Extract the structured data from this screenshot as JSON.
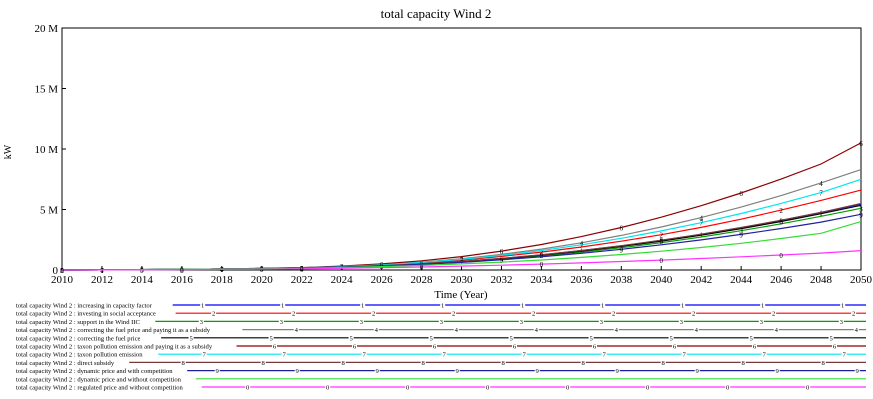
{
  "chart_data": {
    "type": "line",
    "title": "total capacity Wind 2",
    "xlabel": "Time (Year)",
    "ylabel": "kW",
    "xlim": [
      2010,
      2050
    ],
    "ylim": [
      0,
      20000000
    ],
    "grid": false,
    "legend_position": "bottom",
    "x_ticks": [
      "2010",
      "2012",
      "2014",
      "2016",
      "2018",
      "2020",
      "2022",
      "2024",
      "2026",
      "2028",
      "2030",
      "2032",
      "2034",
      "2036",
      "2038",
      "2040",
      "2042",
      "2044",
      "2046",
      "2048",
      "2050"
    ],
    "y_ticks": [
      "0",
      "5 M",
      "10 M",
      "15 M",
      "20 M"
    ],
    "x": [
      2010,
      2012,
      2014,
      2016,
      2018,
      2020,
      2022,
      2024,
      2026,
      2028,
      2030,
      2032,
      2034,
      2036,
      2038,
      2040,
      2042,
      2044,
      2046,
      2048,
      2050
    ],
    "series": [
      {
        "name": "total capacity Wind 2 : increasing in capacity factor",
        "marker": "1",
        "color": "#0000ff",
        "values": [
          0,
          10000,
          30000,
          50000,
          80000,
          120000,
          170000,
          250000,
          350000,
          500000,
          700000,
          950000,
          1250000,
          1600000,
          2000000,
          2450000,
          2950000,
          3500000,
          4100000,
          4750000,
          5450000
        ]
      },
      {
        "name": "total capacity Wind 2 : investing in social acceptance",
        "marker": "2",
        "color": "#ff0000",
        "values": [
          0,
          10000,
          30000,
          50000,
          80000,
          120000,
          180000,
          270000,
          400000,
          580000,
          820000,
          1120000,
          1480000,
          1900000,
          2380000,
          2920000,
          3520000,
          4200000,
          4950000,
          5750000,
          6600000
        ]
      },
      {
        "name": "total capacity Wind 2 : support in the Wind IIC",
        "marker": "3",
        "color": "#00a000",
        "values": [
          0,
          10000,
          30000,
          50000,
          80000,
          120000,
          170000,
          250000,
          340000,
          480000,
          660000,
          880000,
          1150000,
          1470000,
          1840000,
          2260000,
          2730000,
          3250000,
          3820000,
          4440000,
          5100000
        ]
      },
      {
        "name": "total capacity Wind 2 : correcting the fuel price and paying it  as a subsidy",
        "marker": "4",
        "color": "#808080",
        "values": [
          0,
          10000,
          30000,
          50000,
          80000,
          130000,
          190000,
          290000,
          440000,
          650000,
          930000,
          1290000,
          1730000,
          2250000,
          2860000,
          3550000,
          4330000,
          5200000,
          6150000,
          7200000,
          8300000
        ]
      },
      {
        "name": "total capacity Wind 2 : correcting the fuel price",
        "marker": "5",
        "color": "#000000",
        "values": [
          0,
          10000,
          30000,
          50000,
          80000,
          120000,
          170000,
          250000,
          350000,
          500000,
          690000,
          930000,
          1220000,
          1560000,
          1950000,
          2390000,
          2880000,
          3420000,
          4010000,
          4650000,
          5350000
        ]
      },
      {
        "name": "total capacity Wind 2 : taxon pollution emission and paying it as a subsidy",
        "marker": "6",
        "color": "#8b0000",
        "values": [
          0,
          10000,
          30000,
          50000,
          80000,
          130000,
          200000,
          320000,
          500000,
          760000,
          1110000,
          1560000,
          2110000,
          2760000,
          3510000,
          4360000,
          5310000,
          6360000,
          7510000,
          8760000,
          10500000
        ]
      },
      {
        "name": "total capacity Wind 2 : taxon pollution emission",
        "marker": "7",
        "color": "#00e5ee",
        "values": [
          0,
          10000,
          30000,
          50000,
          80000,
          130000,
          190000,
          280000,
          420000,
          620000,
          880000,
          1210000,
          1610000,
          2080000,
          2620000,
          3230000,
          3910000,
          4670000,
          5500000,
          6400000,
          7500000
        ]
      },
      {
        "name": "total capacity Wind 2 : direct subsidy",
        "marker": "8",
        "color": "#7b3a3a",
        "values": [
          0,
          10000,
          30000,
          50000,
          80000,
          120000,
          170000,
          250000,
          360000,
          510000,
          710000,
          960000,
          1260000,
          1610000,
          2010000,
          2460000,
          2960000,
          3510000,
          4110000,
          4760000,
          5500000
        ]
      },
      {
        "name": "total capacity Wind 2 : dynamic price and with competition",
        "marker": "9",
        "color": "#2020a0",
        "values": [
          0,
          10000,
          30000,
          50000,
          80000,
          120000,
          170000,
          240000,
          330000,
          460000,
          630000,
          840000,
          1090000,
          1380000,
          1710000,
          2080000,
          2490000,
          2940000,
          3430000,
          3960000,
          4600000
        ]
      },
      {
        "name": "total capacity Wind 2 : dynamic price and without competition",
        "marker": "",
        "color": "#33dd33",
        "values": [
          0,
          10000,
          30000,
          50000,
          80000,
          110000,
          150000,
          210000,
          280000,
          380000,
          500000,
          650000,
          830000,
          1040000,
          1280000,
          1550000,
          1860000,
          2210000,
          2600000,
          3030000,
          4000000
        ]
      },
      {
        "name": "total capacity Wind 2 : regulated price and without competition",
        "marker": "0",
        "color": "#ff33ff",
        "values": [
          0,
          10000,
          20000,
          30000,
          50000,
          70000,
          100000,
          140000,
          190000,
          250000,
          320000,
          400000,
          490000,
          590000,
          700000,
          820000,
          950000,
          1090000,
          1240000,
          1400000,
          1600000
        ]
      }
    ]
  }
}
